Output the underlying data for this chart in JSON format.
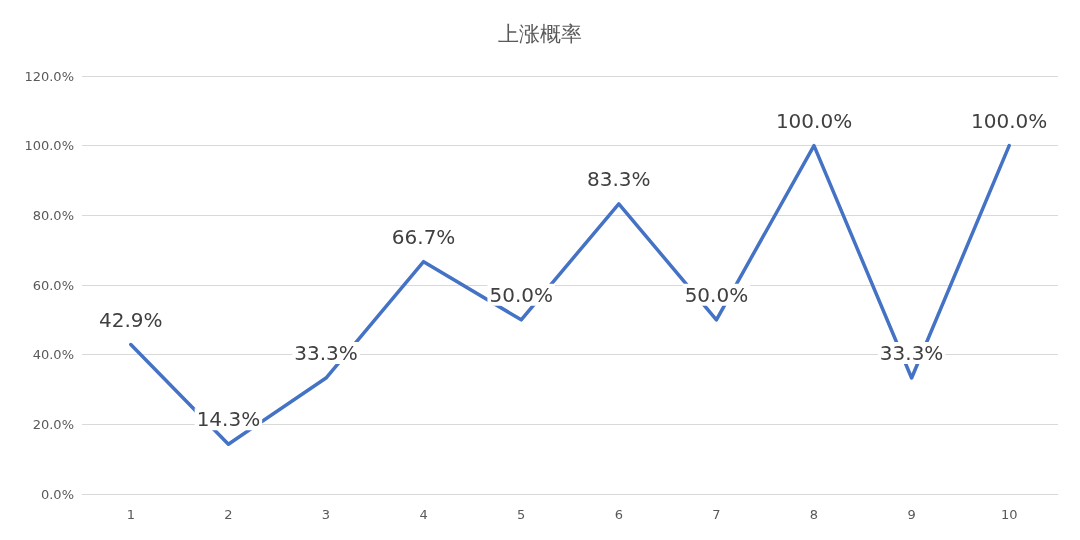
{
  "chart_data": {
    "type": "line",
    "title": "上涨概率",
    "categories": [
      "1",
      "2",
      "3",
      "4",
      "5",
      "6",
      "7",
      "8",
      "9",
      "10"
    ],
    "series": [
      {
        "color": "#4472c4",
        "values": [
          42.9,
          14.3,
          33.3,
          66.7,
          50.0,
          83.3,
          50.0,
          100.0,
          33.3,
          100.0
        ],
        "value_labels": [
          "42.9%",
          "14.3%",
          "33.3%",
          "66.7%",
          "50.0%",
          "83.3%",
          "50.0%",
          "100.0%",
          "33.3%",
          "100.0%"
        ]
      }
    ],
    "ylim": [
      0,
      120
    ],
    "yticks": [
      {
        "value": 0,
        "label": "0.0%"
      },
      {
        "value": 20,
        "label": "20.0%"
      },
      {
        "value": 40,
        "label": "40.0%"
      },
      {
        "value": 60,
        "label": "60.0%"
      },
      {
        "value": 80,
        "label": "80.0%"
      },
      {
        "value": 100,
        "label": "100.0%"
      },
      {
        "value": 120,
        "label": "120.0%"
      }
    ],
    "grid": "y",
    "marker": "none",
    "line_style": "solid"
  }
}
